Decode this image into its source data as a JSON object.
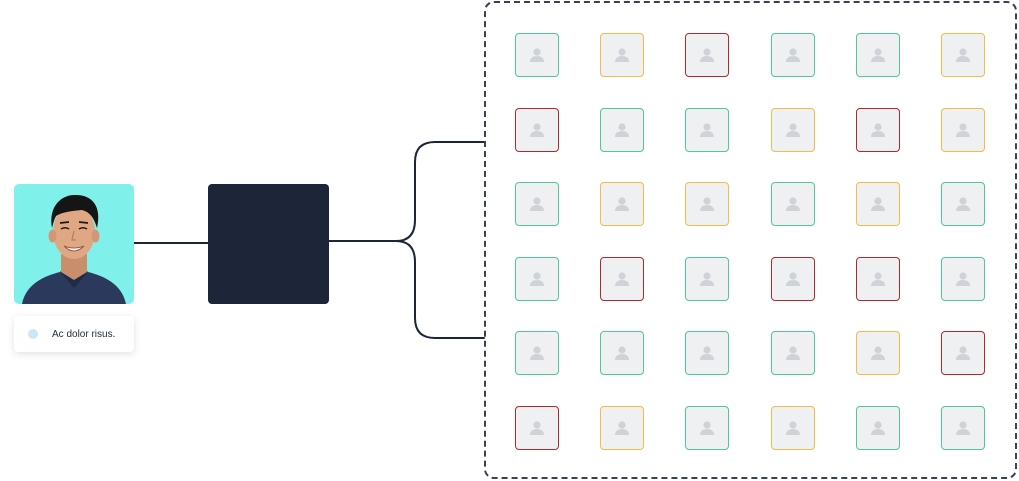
{
  "source": {
    "caption": "Ac dolor risus.",
    "photo_bg": "#80f1ea"
  },
  "processor": {
    "color": "#1d2638"
  },
  "grid": {
    "colors": {
      "green": "#4fc79a",
      "orange": "#f2bc4b",
      "red": "#b3282d"
    },
    "rows": [
      [
        "green",
        "orange",
        "red",
        "green",
        "green",
        "orange"
      ],
      [
        "red",
        "green",
        "green",
        "orange",
        "red",
        "orange"
      ],
      [
        "green",
        "orange",
        "orange",
        "green",
        "orange",
        "green"
      ],
      [
        "green",
        "red",
        "green",
        "red",
        "red",
        "green"
      ],
      [
        "green",
        "green",
        "green",
        "green",
        "orange",
        "red"
      ],
      [
        "red",
        "orange",
        "green",
        "orange",
        "green",
        "green"
      ]
    ]
  }
}
